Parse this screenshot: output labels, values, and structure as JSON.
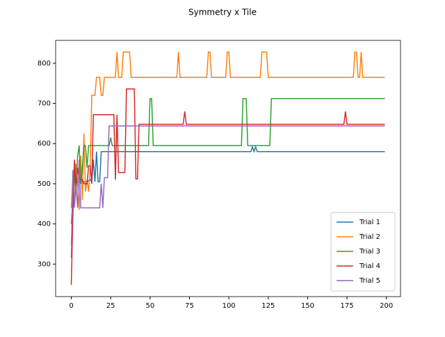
{
  "chart_data": {
    "type": "line",
    "title": "Symmetry x Tile",
    "xlim": [
      -9.95,
      208.95
    ],
    "ylim": [
      219,
      857
    ],
    "xticks": [
      0,
      25,
      50,
      75,
      100,
      125,
      150,
      175,
      200
    ],
    "yticks": [
      300,
      400,
      500,
      600,
      700,
      800
    ],
    "legend": "lower right",
    "series": [
      {
        "name": "Trial 1",
        "color": "#1f77b4",
        "x": [
          0,
          1,
          2,
          3,
          5,
          10,
          12,
          13,
          14,
          15,
          16,
          17,
          18,
          19,
          20,
          114,
          115,
          116,
          117,
          118,
          199
        ],
        "values": [
          348,
          440,
          530,
          505,
          505,
          505,
          510,
          505,
          560,
          505,
          580,
          505,
          505,
          580,
          580,
          580,
          592,
          580,
          592,
          580,
          580
        ]
      },
      {
        "name": "Trial 2",
        "color": "#ff7f0e",
        "x": [
          0,
          1,
          2,
          3,
          4,
          5,
          6,
          7,
          8,
          9,
          10,
          11,
          12,
          13,
          15,
          16,
          18,
          19,
          20,
          21,
          28,
          29,
          30,
          32,
          33,
          37,
          38,
          67,
          68,
          69,
          86,
          87,
          88,
          89,
          98,
          99,
          100,
          101,
          120,
          121,
          124,
          125,
          179,
          180,
          181,
          182,
          183,
          184,
          185,
          199
        ],
        "values": [
          440,
          520,
          450,
          550,
          500,
          435,
          570,
          460,
          625,
          480,
          510,
          480,
          540,
          720,
          720,
          765,
          765,
          720,
          720,
          765,
          765,
          828,
          765,
          765,
          828,
          828,
          765,
          765,
          828,
          765,
          765,
          828,
          828,
          765,
          765,
          828,
          828,
          765,
          765,
          828,
          828,
          765,
          765,
          828,
          828,
          765,
          765,
          828,
          765,
          765
        ]
      },
      {
        "name": "Trial 3",
        "color": "#2ca02c",
        "x": [
          0,
          1,
          2,
          3,
          4,
          5,
          6,
          7,
          8,
          9,
          10,
          11,
          24,
          25,
          26,
          49,
          50,
          51,
          52,
          108,
          109,
          111,
          112,
          126,
          127,
          199
        ],
        "values": [
          400,
          460,
          520,
          480,
          570,
          595,
          500,
          540,
          595,
          595,
          540,
          595,
          595,
          615,
          595,
          595,
          712,
          712,
          595,
          595,
          712,
          712,
          595,
          595,
          712,
          712
        ]
      },
      {
        "name": "Trial 4",
        "color": "#d62728",
        "x": [
          0,
          1,
          2,
          3,
          4,
          5,
          7,
          8,
          10,
          11,
          12,
          13,
          14,
          27,
          28,
          29,
          30,
          34,
          35,
          40,
          41,
          42,
          43,
          71,
          72,
          73,
          173,
          174,
          175,
          199
        ],
        "values": [
          248,
          420,
          560,
          490,
          540,
          510,
          510,
          500,
          500,
          545,
          545,
          500,
          672,
          672,
          510,
          672,
          528,
          528,
          736,
          736,
          512,
          512,
          648,
          648,
          680,
          648,
          648,
          680,
          648,
          648
        ]
      },
      {
        "name": "Trial 5",
        "color": "#9467bd",
        "x": [
          0,
          1,
          2,
          3,
          4,
          5,
          6,
          18,
          19,
          20,
          21,
          23,
          24,
          199
        ],
        "values": [
          315,
          535,
          440,
          495,
          440,
          560,
          440,
          440,
          500,
          440,
          515,
          515,
          644,
          644
        ]
      }
    ]
  }
}
